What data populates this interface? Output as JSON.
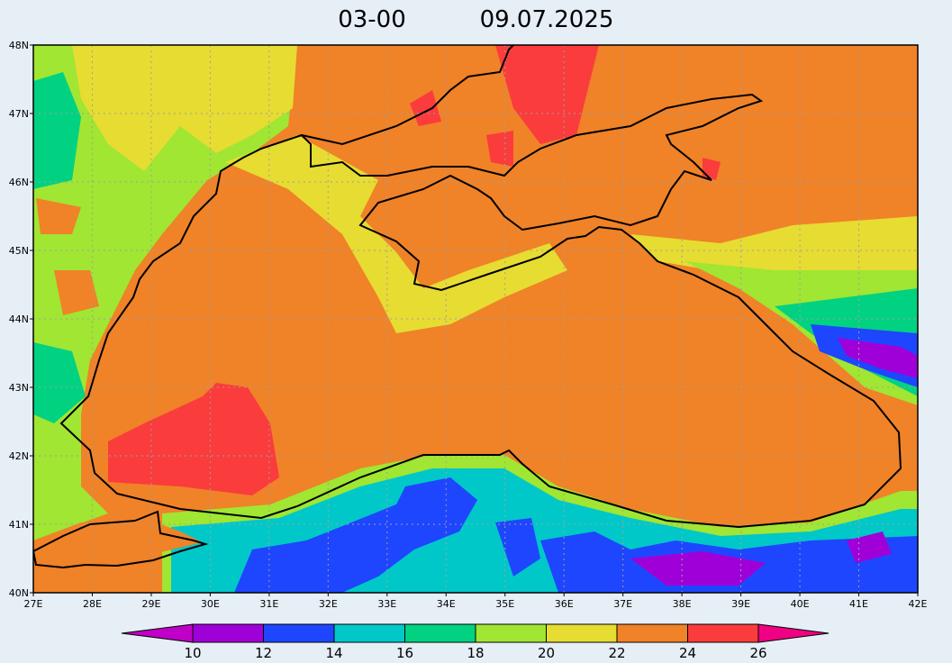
{
  "title": {
    "time": "03-00",
    "date": "09.07.2025"
  },
  "lat_labels": [
    "40N",
    "41N",
    "42N",
    "43N",
    "44N",
    "45N",
    "46N",
    "47N",
    "48N"
  ],
  "lon_labels": [
    "27E",
    "28E",
    "29E",
    "30E",
    "31E",
    "32E",
    "33E",
    "34E",
    "35E",
    "36E",
    "37E",
    "38E",
    "39E",
    "40E",
    "41E",
    "42E"
  ],
  "colorbar": {
    "levels": [
      10,
      12,
      14,
      16,
      18,
      20,
      22,
      24,
      26
    ],
    "colors": [
      "#c000c8",
      "#a000d8",
      "#1e46ff",
      "#00c8c8",
      "#00d282",
      "#a0e632",
      "#e6dc32",
      "#f08228",
      "#fa3c3c",
      "#f00082"
    ]
  }
}
